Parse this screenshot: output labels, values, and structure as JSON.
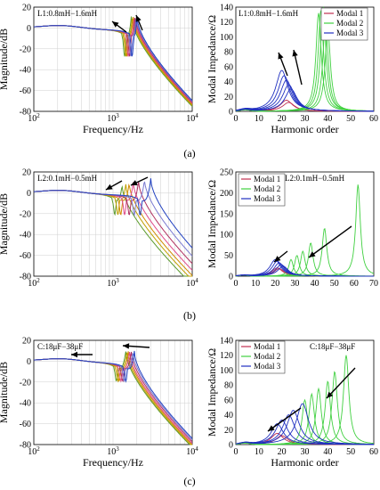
{
  "panel_labels": [
    "(a)",
    "(b)",
    "(c)"
  ],
  "colors": {
    "bode": [
      "#5a9a2a",
      "#c0a000",
      "#d08a00",
      "#e04a8a",
      "#b03060",
      "#7a7ad0",
      "#2040c0"
    ],
    "modal1": "#c03050",
    "modal2": "#40d040",
    "modal3": "#2030c0",
    "arrow": "#000000"
  },
  "chart_data": [
    {
      "id": "a-bode",
      "type": "line",
      "xscale": "log",
      "xlabel": "Frequency/Hz",
      "ylabel": "Magnitude/dB",
      "xlim": [
        100,
        10000
      ],
      "ylim": [
        -80,
        20
      ],
      "xticks": [
        "10^2",
        "10^3",
        "10^4"
      ],
      "yticks": [
        20,
        0,
        -20,
        -40,
        -60,
        -80
      ],
      "annotation": "L1:0.8mH−1.6mH",
      "curves": {
        "count": 7,
        "resonance_hz": [
          1700,
          1750,
          1800,
          1850,
          1900,
          1950,
          2000
        ],
        "antiresonance_hz": [
          1400,
          1450,
          1500,
          1560,
          1620,
          1680,
          1740
        ],
        "peak_db": [
          12,
          12,
          12,
          12,
          12,
          12,
          12
        ]
      }
    },
    {
      "id": "a-modal",
      "type": "line",
      "xlabel": "Harmonic order",
      "ylabel": "Modal Impedance/Ω",
      "xlim": [
        0,
        60
      ],
      "ylim": [
        0,
        140
      ],
      "xticks": [
        0,
        10,
        20,
        30,
        40,
        50,
        60
      ],
      "yticks": [
        0,
        20,
        40,
        60,
        80,
        100,
        120,
        140
      ],
      "annotation": "L1:0.8mH−1.6mH",
      "legend": [
        "Modal 1",
        "Modal 2",
        "Modal 3"
      ],
      "legend_position": "top-right",
      "series": [
        {
          "name": "Modal 1",
          "peaks_x": [
            22,
            23
          ],
          "peaks_y": [
            15,
            12
          ]
        },
        {
          "name": "Modal 2",
          "peaks_x": [
            36,
            37,
            38,
            39,
            40
          ],
          "peaks_y": [
            132,
            135,
            140,
            120,
            110
          ]
        },
        {
          "name": "Modal 3",
          "peaks_x": [
            20,
            21,
            22,
            23,
            24
          ],
          "peaks_y": [
            55,
            48,
            42,
            36,
            30
          ]
        }
      ]
    },
    {
      "id": "b-bode",
      "type": "line",
      "xscale": "log",
      "xlabel": "",
      "ylabel": "Magnitude/dB",
      "xlim": [
        100,
        10000
      ],
      "ylim": [
        -80,
        20
      ],
      "xticks": [
        "10^2",
        "10^3",
        "10^4"
      ],
      "yticks": [
        20,
        0,
        -20,
        -40,
        -60,
        -80
      ],
      "annotation": "L2:0.1mH−0.5mH",
      "curves": {
        "count": 7,
        "resonance_hz": [
          1300,
          1450,
          1600,
          1800,
          2100,
          2500,
          3000
        ],
        "antiresonance_hz": [
          1050,
          1150,
          1250,
          1400,
          1600,
          1850,
          2200
        ],
        "peak_db": [
          8,
          9,
          10,
          11,
          12,
          13,
          14
        ]
      }
    },
    {
      "id": "b-modal",
      "type": "line",
      "xlabel": "",
      "ylabel": "Modal Impedance/Ω",
      "xlim": [
        0,
        70
      ],
      "ylim": [
        0,
        250
      ],
      "xticks": [
        0,
        10,
        20,
        30,
        40,
        50,
        60,
        70
      ],
      "yticks": [
        0,
        50,
        100,
        150,
        200,
        250
      ],
      "annotation": "L2:0.1mH−0.5mH",
      "legend": [
        "Modal 1",
        "Modal 2",
        "Modal 3"
      ],
      "legend_position": "top-left",
      "series": [
        {
          "name": "Modal 1",
          "peaks_x": [
            21,
            22
          ],
          "peaks_y": [
            20,
            18
          ]
        },
        {
          "name": "Modal 2",
          "peaks_x": [
            28,
            31,
            34,
            38,
            45,
            62
          ],
          "peaks_y": [
            40,
            50,
            60,
            80,
            115,
            220
          ]
        },
        {
          "name": "Modal 3",
          "peaks_x": [
            20,
            21,
            22,
            23,
            24
          ],
          "peaks_y": [
            40,
            36,
            32,
            28,
            24
          ]
        }
      ]
    },
    {
      "id": "c-bode",
      "type": "line",
      "xscale": "log",
      "xlabel": "Frequency/Hz",
      "ylabel": "Magnitude/dB",
      "xlim": [
        100,
        10000
      ],
      "ylim": [
        -80,
        20
      ],
      "xticks": [
        "10^2",
        "10^3",
        "10^4"
      ],
      "yticks": [
        20,
        0,
        -20,
        -40,
        -60,
        -80
      ],
      "annotation": "C:18μF−38μF",
      "curves": {
        "count": 7,
        "resonance_hz": [
          1450,
          1500,
          1560,
          1620,
          1700,
          1780,
          1860
        ],
        "antiresonance_hz": [
          1100,
          1150,
          1200,
          1260,
          1320,
          1380,
          1450
        ],
        "peak_db": [
          10,
          10,
          10,
          10,
          10,
          10,
          10
        ]
      }
    },
    {
      "id": "c-modal",
      "type": "line",
      "xlabel": "Harmonic order",
      "ylabel": "Modal Impedance/Ω",
      "xlim": [
        0,
        60
      ],
      "ylim": [
        0,
        140
      ],
      "xticks": [
        0,
        10,
        20,
        30,
        40,
        50,
        60
      ],
      "yticks": [
        0,
        20,
        40,
        60,
        80,
        100,
        120,
        140
      ],
      "annotation": "C:18μF−38μF",
      "legend": [
        "Modal 1",
        "Modal 2",
        "Modal 3"
      ],
      "legend_position": "top-left",
      "series": [
        {
          "name": "Modal 1",
          "peaks_x": [
            18,
            20
          ],
          "peaks_y": [
            15,
            12
          ]
        },
        {
          "name": "Modal 2",
          "peaks_x": [
            30,
            33,
            36,
            40,
            43,
            48
          ],
          "peaks_y": [
            60,
            68,
            75,
            85,
            98,
            120
          ]
        },
        {
          "name": "Modal 3",
          "peaks_x": [
            18,
            20,
            23,
            25,
            29
          ],
          "peaks_y": [
            28,
            33,
            40,
            46,
            55
          ]
        }
      ]
    }
  ]
}
